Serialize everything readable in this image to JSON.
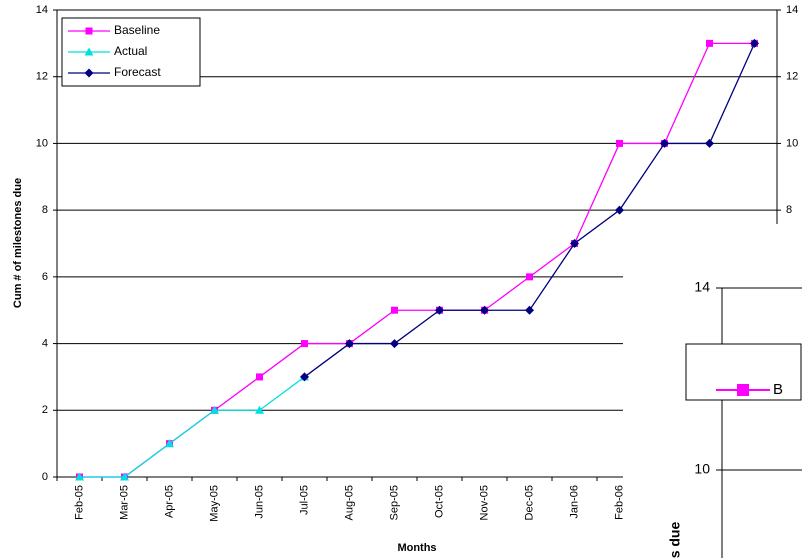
{
  "chart_data": {
    "type": "line",
    "ylabel": "Cum # of milestones due",
    "xlabel": "Months",
    "categories": [
      "Feb-05",
      "Mar-05",
      "Apr-05",
      "May-05",
      "Jun-05",
      "Jul-05",
      "Aug-05",
      "Sep-05",
      "Oct-05",
      "Nov-05",
      "Dec-05",
      "Jan-06",
      "Feb-06",
      null,
      null,
      null
    ],
    "series": [
      {
        "name": "Baseline",
        "color": "#ff00ff",
        "marker": "square",
        "values": [
          0,
          0,
          1,
          2,
          3,
          4,
          4,
          5,
          5,
          5,
          6,
          7,
          10,
          10,
          13,
          13
        ]
      },
      {
        "name": "Actual",
        "color": "#00e0e0",
        "marker": "triangle",
        "values": [
          0,
          0,
          1,
          2,
          2,
          3,
          null,
          null,
          null,
          null,
          null,
          null,
          null,
          null,
          null,
          null
        ]
      },
      {
        "name": "Forecast",
        "color": "#000080",
        "marker": "diamond",
        "values": [
          null,
          null,
          null,
          null,
          null,
          3,
          4,
          4,
          5,
          5,
          5,
          7,
          8,
          10,
          10,
          13
        ]
      }
    ],
    "ylim": [
      0,
      14
    ],
    "yticks": [
      0,
      2,
      4,
      6,
      8,
      10,
      12,
      14
    ],
    "y2lim": [
      0,
      14
    ],
    "y2ticks": [
      8,
      10,
      12,
      14
    ],
    "grid": true,
    "legend": "top-left"
  },
  "inset": {
    "ylim": [
      10,
      14
    ],
    "yticks": [
      10,
      14
    ],
    "ylabel_fragment": "s due",
    "legend_fragment": "B",
    "legend_color": "#ff00ff"
  }
}
